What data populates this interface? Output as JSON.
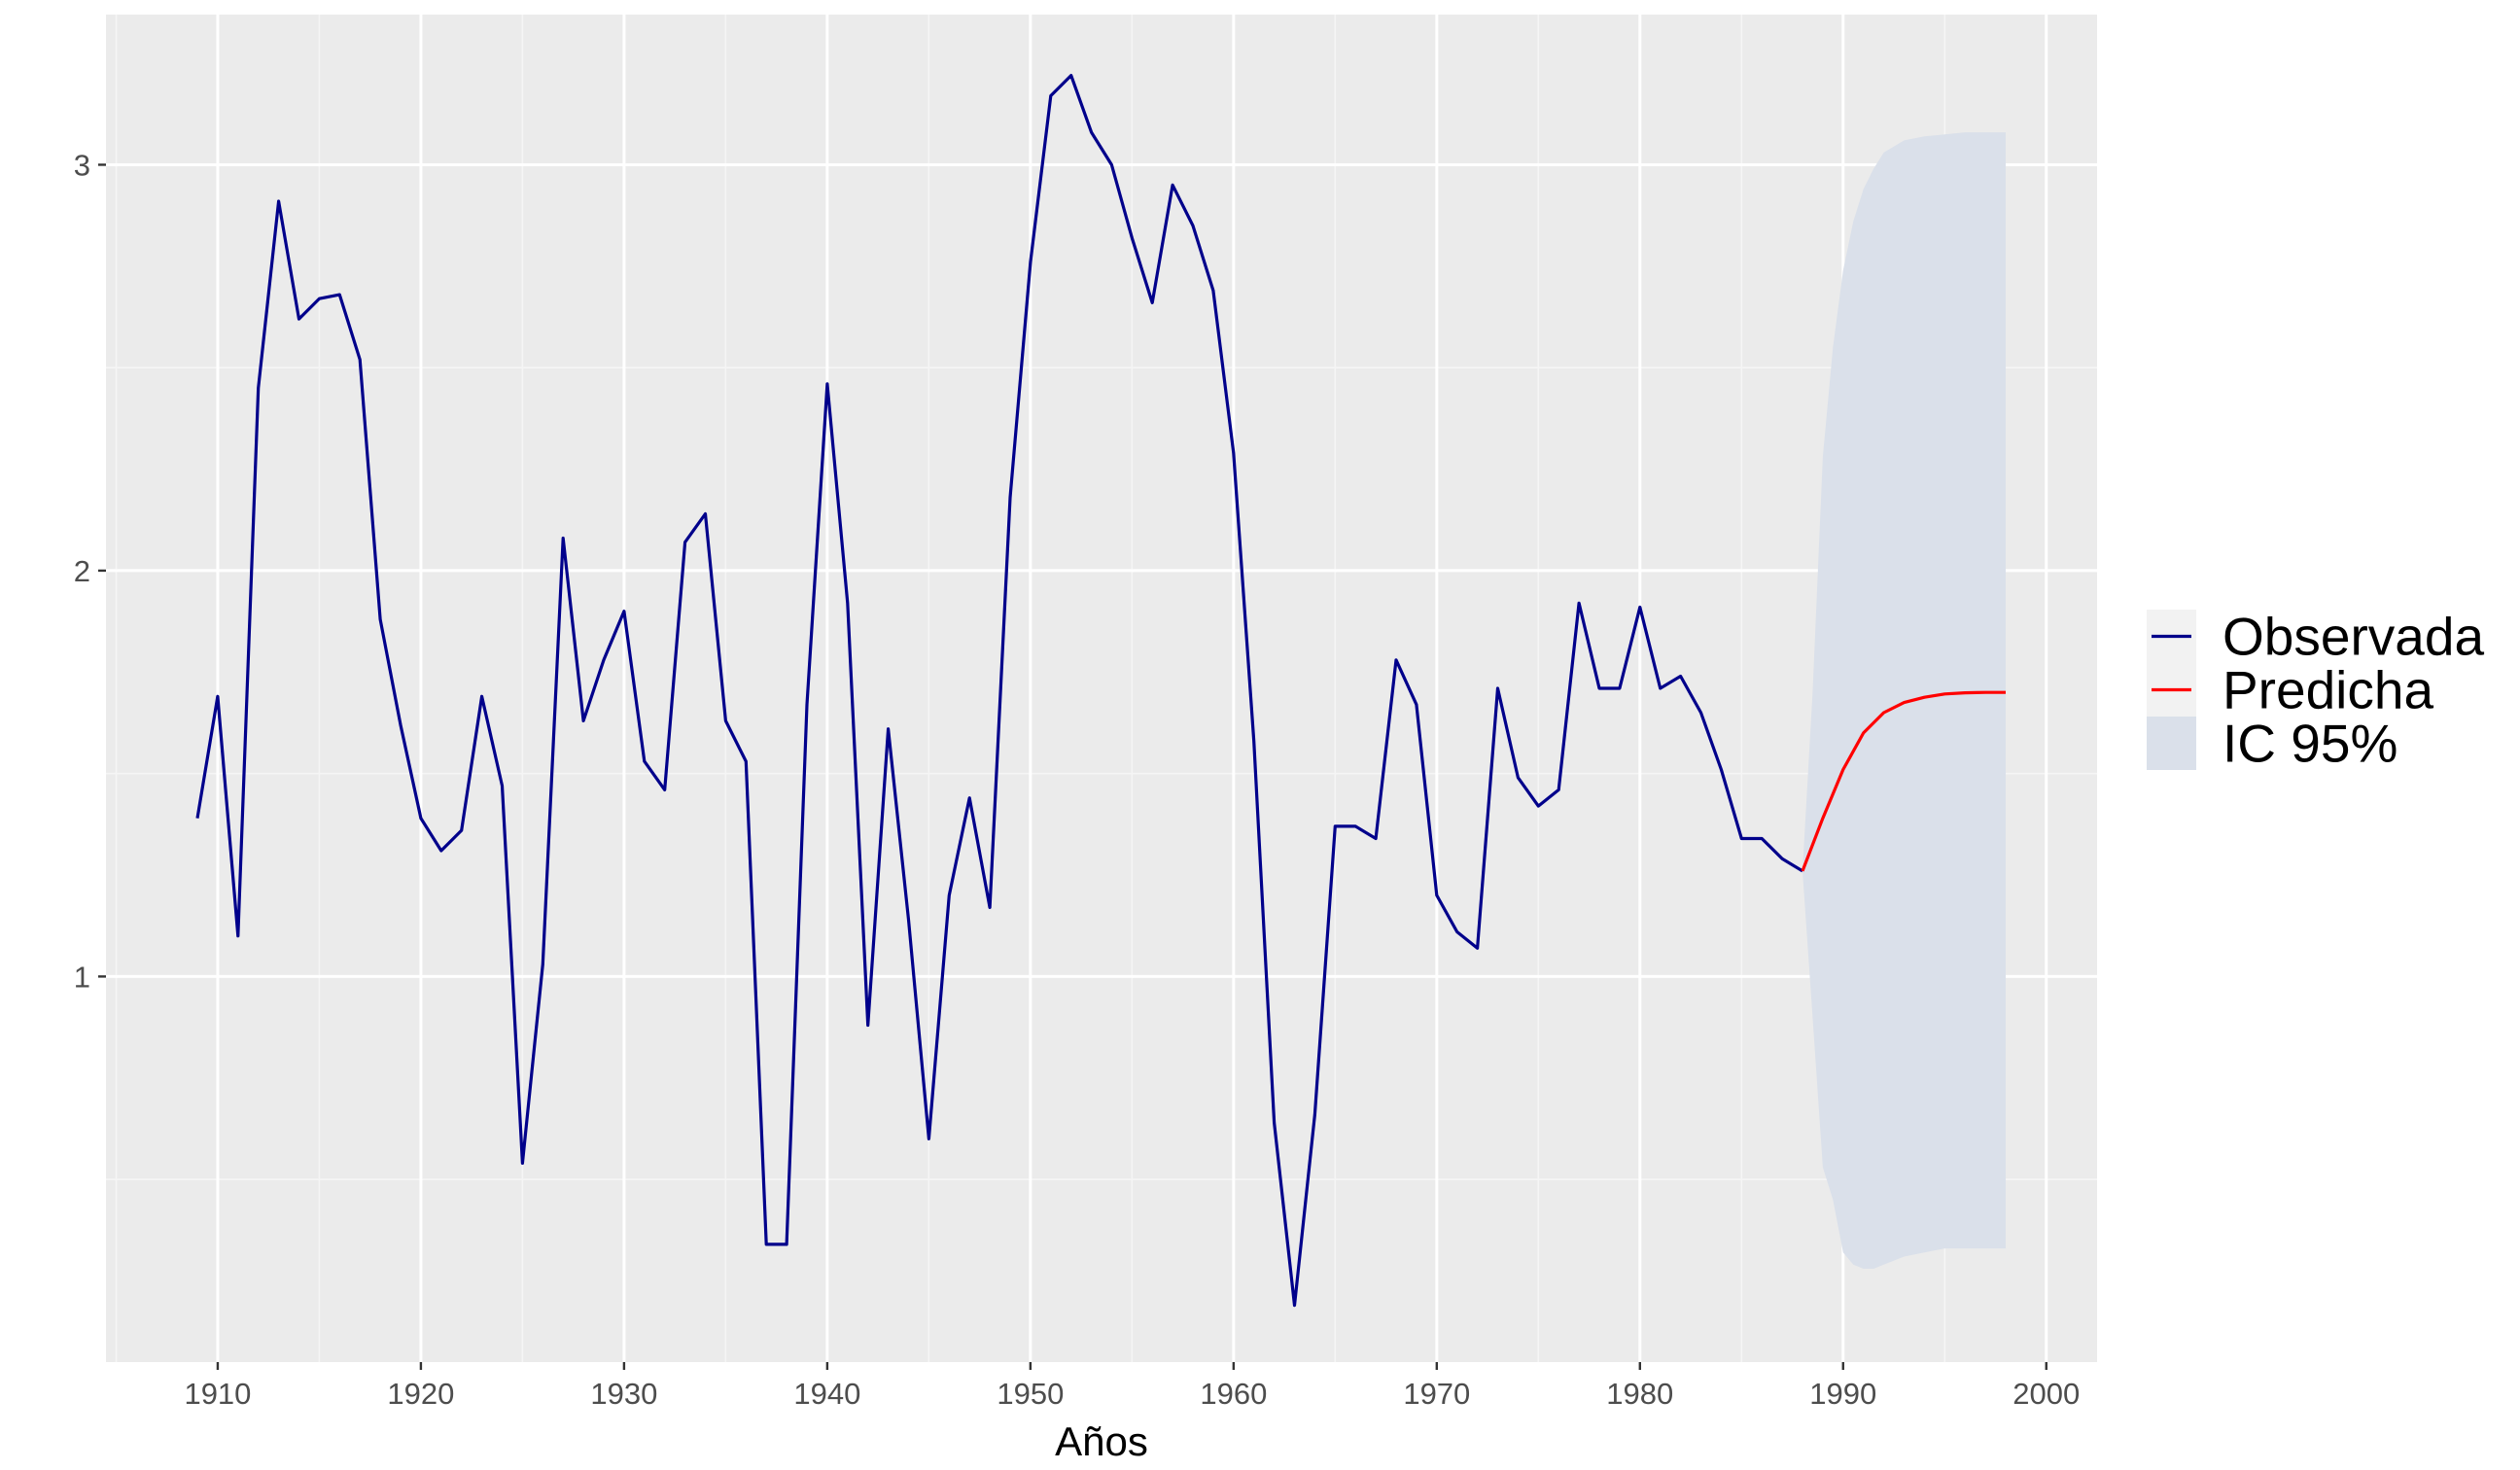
{
  "chart_data": {
    "type": "line",
    "title": "",
    "xlabel": "Años",
    "ylabel": "",
    "xlim": [
      1904.5,
      2002.5
    ],
    "ylim": [
      0.05,
      3.37
    ],
    "x_ticks": [
      1910,
      1920,
      1930,
      1940,
      1950,
      1960,
      1970,
      1980,
      1990,
      2000
    ],
    "x_tick_labels": [
      "1910",
      "1920",
      "1930",
      "1940",
      "1950",
      "1960",
      "1970",
      "1980",
      "1990",
      "2000"
    ],
    "x_minor_ticks": [
      1905,
      1915,
      1925,
      1935,
      1945,
      1955,
      1965,
      1975,
      1985,
      1995
    ],
    "y_ticks": [
      1,
      2,
      3
    ],
    "y_tick_labels": [
      "1",
      "2",
      "3"
    ],
    "y_minor_ticks": [
      0.5,
      1.5,
      2.5
    ],
    "grid": true,
    "legend_position": "right",
    "series": [
      {
        "name": "Observada",
        "color": "#00008B",
        "x": [
          1909,
          1910,
          1911,
          1912,
          1913,
          1914,
          1915,
          1916,
          1917,
          1918,
          1919,
          1920,
          1921,
          1922,
          1923,
          1924,
          1925,
          1926,
          1927,
          1928,
          1929,
          1930,
          1931,
          1932,
          1933,
          1934,
          1935,
          1936,
          1937,
          1938,
          1939,
          1940,
          1941,
          1942,
          1943,
          1944,
          1945,
          1946,
          1947,
          1948,
          1949,
          1950,
          1951,
          1952,
          1953,
          1954,
          1955,
          1956,
          1957,
          1958,
          1959,
          1960,
          1961,
          1962,
          1963,
          1964,
          1965,
          1966,
          1967,
          1968,
          1969,
          1970,
          1971,
          1972,
          1973,
          1974,
          1975,
          1976,
          1977,
          1978,
          1979,
          1980,
          1981,
          1982,
          1983,
          1984,
          1985,
          1986,
          1987,
          1988
        ],
        "y": [
          1.39,
          1.69,
          1.1,
          2.45,
          2.91,
          2.62,
          2.67,
          2.68,
          2.52,
          1.88,
          1.62,
          1.39,
          1.31,
          1.36,
          1.69,
          1.47,
          0.54,
          1.03,
          2.08,
          1.63,
          1.78,
          1.9,
          1.53,
          1.46,
          2.07,
          2.14,
          1.63,
          1.53,
          0.34,
          0.34,
          1.67,
          2.46,
          1.92,
          0.88,
          1.61,
          1.14,
          0.6,
          1.2,
          1.44,
          1.17,
          2.18,
          2.76,
          3.17,
          3.22,
          3.08,
          3.0,
          2.82,
          2.66,
          2.95,
          2.85,
          2.69,
          2.29,
          1.58,
          0.64,
          0.19,
          0.66,
          1.37,
          1.37,
          1.34,
          1.78,
          1.67,
          1.2,
          1.11,
          1.07,
          1.71,
          1.49,
          1.42,
          1.46,
          1.92,
          1.71,
          1.71,
          1.91,
          1.71,
          1.74,
          1.65,
          1.51,
          1.34,
          1.34,
          1.29,
          1.26
        ]
      },
      {
        "name": "Predicha",
        "color": "#FF0000",
        "x": [
          1988,
          1989,
          1990,
          1991,
          1992,
          1993,
          1994,
          1995,
          1996,
          1997,
          1998
        ],
        "y": [
          1.26,
          1.39,
          1.51,
          1.6,
          1.65,
          1.675,
          1.688,
          1.696,
          1.699,
          1.7,
          1.7
        ]
      }
    ],
    "band": {
      "name": "IC 95%",
      "color": "#DAE0EA",
      "x": [
        1988,
        1988.5,
        1989,
        1989.5,
        1990,
        1990.5,
        1991,
        1991.5,
        1992,
        1993,
        1994,
        1995,
        1996,
        1997,
        1998
      ],
      "lower": [
        1.26,
        0.9,
        0.53,
        0.45,
        0.32,
        0.29,
        0.28,
        0.28,
        0.29,
        0.31,
        0.32,
        0.33,
        0.33,
        0.33,
        0.33
      ],
      "upper": [
        1.26,
        1.7,
        2.28,
        2.55,
        2.74,
        2.86,
        2.94,
        2.99,
        3.03,
        3.06,
        3.07,
        3.075,
        3.08,
        3.08,
        3.08
      ]
    },
    "colors": {
      "panel": "#EBEBEB",
      "grid_major": "#FFFFFF",
      "grid_minor": "#F5F5F5",
      "legend_key_bg": "#F2F2F2"
    }
  }
}
